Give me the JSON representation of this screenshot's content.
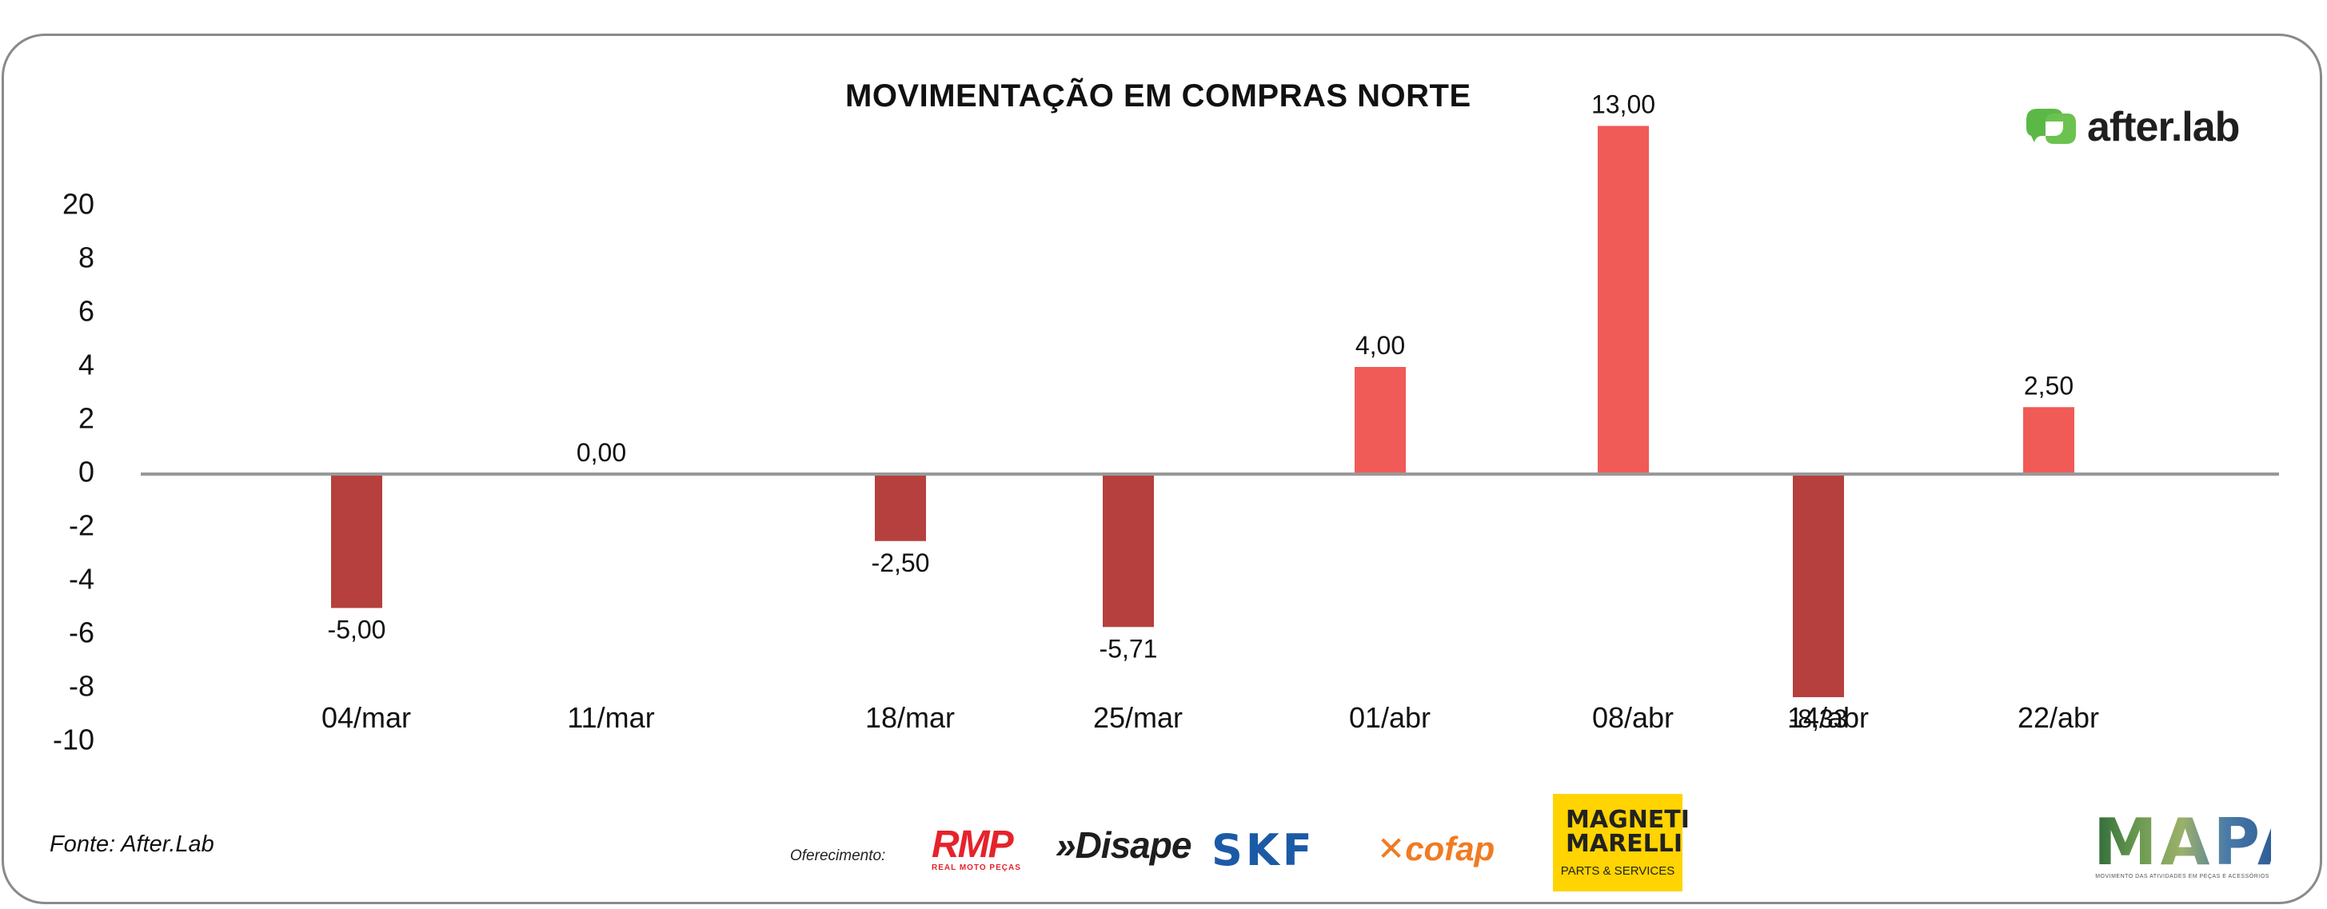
{
  "brand": {
    "name": "after.lab",
    "icon": "leaf-chat-icon",
    "color": "#5bb846"
  },
  "source": "Fonte: After.Lab",
  "offer_label": "Oferecimento:",
  "sponsors": {
    "rmp": {
      "name": "RMP",
      "tagline": "REAL MOTO PEÇAS"
    },
    "disape": {
      "name": "»Disape"
    },
    "skf": {
      "name": "SKF"
    },
    "cofap": {
      "name": "cofap"
    },
    "magneti": {
      "name": "MAGNETI MARELLI",
      "tagline": "PARTS & SERVICES"
    },
    "mapa": {
      "name": "MAPA",
      "tagline": "MOVIMENTO DAS ATIVIDADES EM PEÇAS E ACESSÓRIOS"
    }
  },
  "colors": {
    "positive": "#f05a57",
    "negative": "#b5403d",
    "axis": "#999999"
  },
  "chart_data": {
    "type": "bar",
    "title": "MOVIMENTAÇÃO EM COMPRAS NORTE",
    "xlabel": "",
    "ylabel": "",
    "ylim": [
      -10,
      20
    ],
    "y_tick_labels": [
      "20",
      "8",
      "6",
      "4",
      "2",
      "0",
      "-2",
      "-4",
      "-6",
      "-8",
      "-10"
    ],
    "categories": [
      "04/mar",
      "11/mar",
      "18/mar",
      "25/mar",
      "01/abr",
      "08/abr",
      "14/abr",
      "22/abr"
    ],
    "values": [
      -5.0,
      0.0,
      -2.5,
      -5.71,
      4.0,
      13.0,
      -8.33,
      2.5
    ],
    "data_labels": [
      "-5,00",
      "0,00",
      "-2,50",
      "-5,71",
      "4,00",
      "13,00",
      "-8,33",
      "2,50"
    ],
    "legend": "none",
    "grid": false
  }
}
